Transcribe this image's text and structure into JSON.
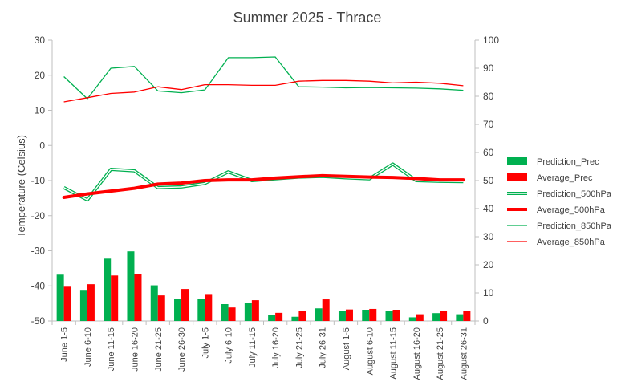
{
  "chart_data": {
    "type": "bar",
    "title": "Summer 2025 - Thrace",
    "ylabel": "Temperature  (Celsius)",
    "xlabel": "",
    "ylim": [
      -50,
      30
    ],
    "y2lim": [
      0,
      100
    ],
    "yticks": [
      "30",
      "20",
      "10",
      "0",
      "-10",
      "-20",
      "-30",
      "-40",
      "-50"
    ],
    "y2ticks": [
      "100",
      "90",
      "80",
      "70",
      "60",
      "50",
      "40",
      "30",
      "20",
      "10",
      "0"
    ],
    "grid": false,
    "legend_position": "right",
    "categories": [
      "June 1-5",
      "June 6-10",
      "June 11-15",
      "June 16-20",
      "June 21-25",
      "June 26-30",
      "July 1-5",
      "July 6-10",
      "July 11-15",
      "July 16-20",
      "July 21-25",
      "July 26-31",
      "August 1-5",
      "August 6-10",
      "August 11-15",
      "August 16-20",
      "August 21-25",
      "August 26-31"
    ],
    "series": [
      {
        "name": "Prediction_Prec",
        "kind": "bar",
        "axis": "right",
        "color": "#00b050",
        "values": [
          16.5,
          10.8,
          22.2,
          24.8,
          12.7,
          7.9,
          7.9,
          6.0,
          6.5,
          2.2,
          1.5,
          4.5,
          3.5,
          4.0,
          3.6,
          1.3,
          2.8,
          2.4
        ]
      },
      {
        "name": "Average_Prec",
        "kind": "bar",
        "axis": "right",
        "color": "#ff0000",
        "values": [
          12.2,
          13.1,
          16.2,
          16.7,
          9.1,
          11.4,
          9.6,
          4.8,
          7.4,
          2.9,
          3.5,
          7.7,
          4.1,
          4.3,
          4.0,
          2.4,
          3.6,
          3.5
        ]
      },
      {
        "name": "Prediction_500hPa",
        "kind": "line",
        "axis": "left",
        "style": "double",
        "color": "#00b050",
        "values": [
          -12.0,
          -15.5,
          -6.8,
          -7.2,
          -12.0,
          -11.8,
          -10.8,
          -7.5,
          -10.0,
          -9.5,
          -9.0,
          -8.8,
          -9.2,
          -9.5,
          -5.3,
          -10.0,
          -10.2,
          -10.3
        ]
      },
      {
        "name": "Average_500hPa",
        "kind": "line",
        "axis": "left",
        "style": "thick",
        "color": "#ff0000",
        "values": [
          -14.8,
          -13.8,
          -13.0,
          -12.2,
          -11.0,
          -10.7,
          -10.0,
          -9.8,
          -9.8,
          -9.3,
          -8.9,
          -8.6,
          -8.8,
          -9.0,
          -9.1,
          -9.4,
          -9.8,
          -9.8
        ]
      },
      {
        "name": "Prediction_850hPa",
        "kind": "line",
        "axis": "left",
        "style": "thin",
        "color": "#00b050",
        "values": [
          19.6,
          13.3,
          22.0,
          22.5,
          15.5,
          15.0,
          15.8,
          25.0,
          25.0,
          25.2,
          16.7,
          16.6,
          16.4,
          16.5,
          16.4,
          16.3,
          16.1,
          15.7
        ]
      },
      {
        "name": "Average_850hPa",
        "kind": "line",
        "axis": "left",
        "style": "thin",
        "color": "#ff0000",
        "values": [
          12.4,
          13.6,
          14.8,
          15.2,
          16.7,
          15.9,
          17.3,
          17.3,
          17.1,
          17.1,
          18.3,
          18.5,
          18.5,
          18.3,
          17.8,
          18.0,
          17.7,
          17.0
        ]
      }
    ]
  }
}
